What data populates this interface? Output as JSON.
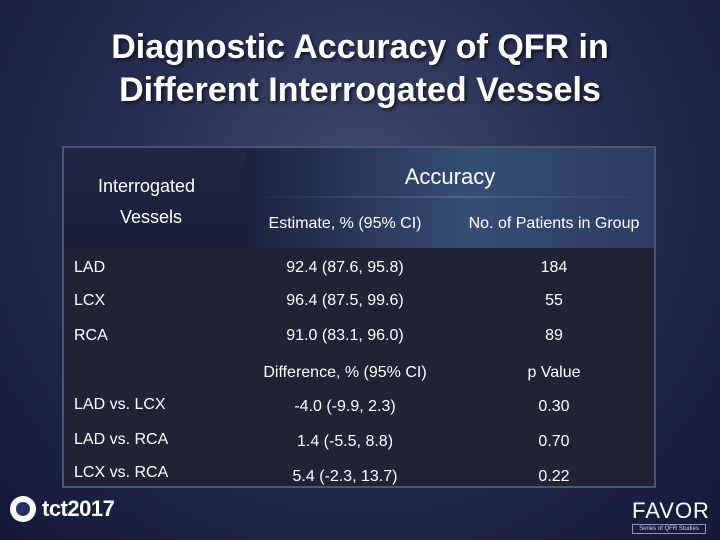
{
  "slide": {
    "title_line1": "Diagnostic Accuracy of QFR in",
    "title_line2": "Different Interrogated Vessels"
  },
  "table": {
    "header_vessels_line1": "Interrogated",
    "header_vessels_line2": "Vessels",
    "header_accuracy": "Accuracy",
    "col_estimate": "Estimate, % (95% CI)",
    "col_patients": "No. of Patients in Group",
    "rows": [
      {
        "vessel": "LAD",
        "estimate": "92.4 (87.6, 95.8)",
        "patients": "184"
      },
      {
        "vessel": "LCX",
        "estimate": "96.4 (87.5, 99.6)",
        "patients": "55"
      },
      {
        "vessel": "RCA",
        "estimate": "91.0 (83.1, 96.0)",
        "patients": "89"
      }
    ],
    "col_difference": "Difference, % (95% CI)",
    "col_pvalue": "p Value",
    "comparisons": [
      {
        "pair": "LAD vs. LCX",
        "difference": "-4.0 (-9.9, 2.3)",
        "p": "0.30"
      },
      {
        "pair": "LAD vs. RCA",
        "difference": "1.4 (-5.5, 8.8)",
        "p": "0.70"
      },
      {
        "pair": "LCX vs. RCA",
        "difference": "5.4 (-2.3, 13.7)",
        "p": "0.22"
      }
    ]
  },
  "logos": {
    "tct": "tct2017",
    "favor_name": "FAVOR",
    "favor_tag": "Series of QFR Studies"
  }
}
